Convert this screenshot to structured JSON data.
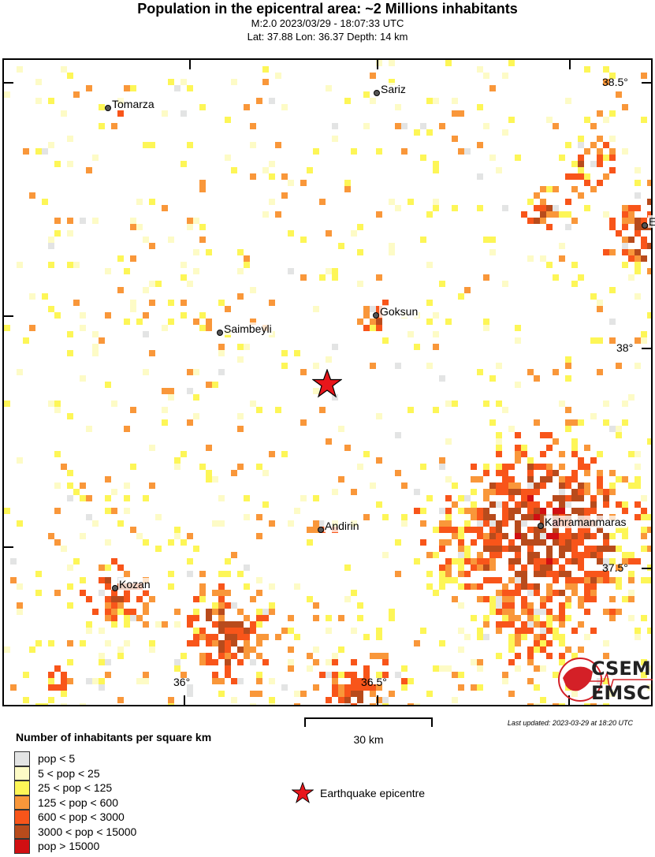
{
  "header": {
    "title": "Population in the epicentral area: ~2 Millions inhabitants",
    "event": "M:2.0 2023/03/29 - 18:07:33 UTC",
    "location": "Lat: 37.88 Lon: 36.37 Depth: 14 km"
  },
  "map": {
    "lon_labels": [
      "36°",
      "36.5°"
    ],
    "lat_labels": [
      "38.5°",
      "38°",
      "37.5°"
    ],
    "cities": [
      "Tomarza",
      "Sariz",
      "E",
      "Saimbeyli",
      "Goksun",
      "Andirin",
      "Kahramanmaras",
      "Kozan"
    ],
    "epicentre_color": "#e8161b"
  },
  "logo": {
    "line1": "CSEM",
    "line2": "EMSC",
    "color": "#d42027"
  },
  "scale": {
    "label": "30 km"
  },
  "updated": "Last updated: 2023-03-29 at 18:20 UTC",
  "legend": {
    "title": "Number of inhabitants per square km",
    "items": [
      {
        "label": "pop < 5",
        "color": "#e3e4e4"
      },
      {
        "label": "5 < pop < 25",
        "color": "#fdfbc6"
      },
      {
        "label": "25 < pop < 125",
        "color": "#fdf657"
      },
      {
        "label": "125 < pop < 600",
        "color": "#f9973a"
      },
      {
        "label": "600 < pop < 3000",
        "color": "#f8551a"
      },
      {
        "label": "3000 < pop < 15000",
        "color": "#b84b1c"
      },
      {
        "label": "pop > 15000",
        "color": "#d10f12"
      }
    ],
    "epicentre_label": "Earthquake epicentre"
  }
}
